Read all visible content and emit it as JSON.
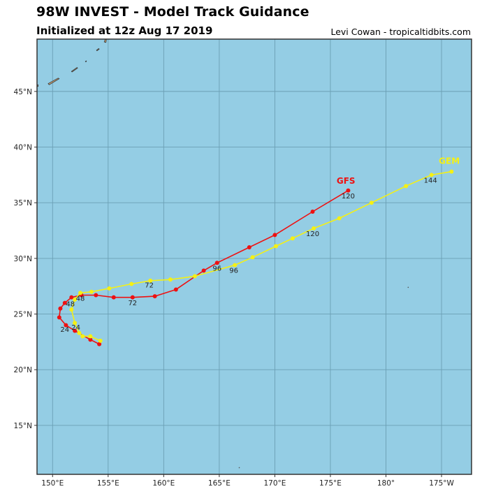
{
  "header": {
    "title": "98W INVEST - Model Track Guidance",
    "subtitle": "Initialized at 12z Aug 17 2019",
    "credit": "Levi Cowan - tropicaltidbits.com"
  },
  "colors": {
    "ocean": "#94cde4",
    "grid": "#6b9fb4",
    "land": "#c8a276",
    "land_edge": "#333333",
    "frame": "#333333",
    "gfs": "#ee1111",
    "gem": "#f5f014"
  },
  "map": {
    "lon_range": [
      148.6,
      187.7
    ],
    "lat_range": [
      10.6,
      49.7
    ],
    "x_ticks": [
      {
        "lon": 150,
        "label": "150°E"
      },
      {
        "lon": 155,
        "label": "155°E"
      },
      {
        "lon": 160,
        "label": "160°E"
      },
      {
        "lon": 165,
        "label": "165°E"
      },
      {
        "lon": 170,
        "label": "170°E"
      },
      {
        "lon": 175,
        "label": "175°E"
      },
      {
        "lon": 180,
        "label": "180°"
      },
      {
        "lon": 185,
        "label": "175°W"
      }
    ],
    "y_ticks": [
      {
        "lat": 15,
        "label": "15°N"
      },
      {
        "lat": 20,
        "label": "20°N"
      },
      {
        "lat": 25,
        "label": "25°N"
      },
      {
        "lat": 30,
        "label": "30°N"
      },
      {
        "lat": 35,
        "label": "35°N"
      },
      {
        "lat": 40,
        "label": "40°N"
      },
      {
        "lat": 45,
        "label": "45°N"
      }
    ]
  },
  "chart_data": {
    "type": "line",
    "title": "98W INVEST - Model Track Guidance",
    "subtitle": "Initialized at 12z Aug 17 2019",
    "xlabel": "Longitude",
    "ylabel": "Latitude",
    "xlim": [
      "148.6°E",
      "172.3°W"
    ],
    "ylim": [
      "10.6°N",
      "49.7°N"
    ],
    "grid": true,
    "series": [
      {
        "name": "GFS",
        "color": "#ee1111",
        "points": [
          [
            154.2,
            22.3
          ],
          [
            153.4,
            22.7
          ],
          [
            152.0,
            23.5
          ],
          [
            151.2,
            24.0
          ],
          [
            150.6,
            24.7
          ],
          [
            150.7,
            25.5
          ],
          [
            151.1,
            26.0
          ],
          [
            151.7,
            26.5
          ],
          [
            152.6,
            26.7
          ],
          [
            153.9,
            26.7
          ],
          [
            155.5,
            26.5
          ],
          [
            157.2,
            26.5
          ],
          [
            159.2,
            26.6
          ],
          [
            161.1,
            27.2
          ],
          [
            163.6,
            28.9
          ],
          [
            164.8,
            29.6
          ],
          [
            167.7,
            31.0
          ],
          [
            170.0,
            32.1
          ],
          [
            173.4,
            34.2
          ],
          [
            176.6,
            36.1
          ]
        ],
        "hour_labels": [
          {
            "text": "24",
            "lon": 151.1,
            "lat": 23.4
          },
          {
            "text": "48",
            "lon": 151.6,
            "lat": 25.7
          },
          {
            "text": "72",
            "lon": 157.2,
            "lat": 25.8
          },
          {
            "text": "96",
            "lon": 164.8,
            "lat": 28.9
          },
          {
            "text": "120",
            "lon": 176.6,
            "lat": 35.4
          }
        ],
        "end_label": {
          "text": "GFS",
          "lon": 176.4,
          "lat": 36.7
        }
      },
      {
        "name": "GEM",
        "color": "#f5f014",
        "points": [
          [
            154.3,
            22.6
          ],
          [
            153.4,
            23.0
          ],
          [
            152.7,
            23.0
          ],
          [
            152.4,
            23.3
          ],
          [
            152.0,
            24.2
          ],
          [
            151.7,
            25.4
          ],
          [
            152.0,
            26.3
          ],
          [
            152.5,
            26.9
          ],
          [
            153.5,
            27.0
          ],
          [
            155.1,
            27.3
          ],
          [
            157.1,
            27.7
          ],
          [
            158.8,
            28.0
          ],
          [
            160.6,
            28.1
          ],
          [
            162.8,
            28.4
          ],
          [
            166.4,
            29.4
          ],
          [
            168.0,
            30.1
          ],
          [
            170.1,
            31.1
          ],
          [
            171.6,
            31.8
          ],
          [
            173.5,
            32.7
          ],
          [
            175.8,
            33.6
          ],
          [
            178.7,
            35.0
          ],
          [
            181.8,
            36.5
          ],
          [
            184.1,
            37.5
          ],
          [
            185.9,
            37.8
          ]
        ],
        "hour_labels": [
          {
            "text": "24",
            "lon": 152.1,
            "lat": 23.6
          },
          {
            "text": "48",
            "lon": 152.5,
            "lat": 26.2
          },
          {
            "text": "72",
            "lon": 158.7,
            "lat": 27.4
          },
          {
            "text": "96",
            "lon": 166.3,
            "lat": 28.7
          },
          {
            "text": "120",
            "lon": 173.4,
            "lat": 32.0
          },
          {
            "text": "144",
            "lon": 184.0,
            "lat": 36.8
          }
        ],
        "end_label": {
          "text": "GEM",
          "lon": 185.7,
          "lat": 38.5
        }
      }
    ]
  },
  "land": [
    {
      "name": "kuril-island-large",
      "points": [
        [
          149.6,
          45.7
        ],
        [
          150.5,
          46.2
        ],
        [
          150.6,
          46.15
        ],
        [
          149.7,
          45.6
        ]
      ]
    },
    {
      "name": "kuril-island-mid",
      "points": [
        [
          151.7,
          46.8
        ],
        [
          152.2,
          47.15
        ],
        [
          152.25,
          47.1
        ],
        [
          151.75,
          46.75
        ]
      ]
    },
    {
      "name": "kuril-island-small-a",
      "points": [
        [
          152.95,
          47.7
        ],
        [
          153.05,
          47.75
        ],
        [
          153.0,
          47.65
        ]
      ]
    },
    {
      "name": "kuril-island-small-b",
      "points": [
        [
          153.95,
          48.7
        ],
        [
          154.15,
          48.85
        ],
        [
          154.2,
          48.8
        ],
        [
          154.0,
          48.65
        ]
      ]
    },
    {
      "name": "kuril-island-top",
      "points": [
        [
          154.65,
          49.45
        ],
        [
          154.75,
          49.7
        ],
        [
          154.85,
          49.7
        ],
        [
          154.8,
          49.4
        ]
      ]
    },
    {
      "name": "kamchatka-edge",
      "points": [
        [
          148.6,
          45.55
        ],
        [
          148.7,
          45.6
        ],
        [
          148.7,
          45.45
        ],
        [
          148.6,
          45.45
        ]
      ]
    }
  ],
  "specks": [
    {
      "lon": 182.0,
      "lat": 27.4
    },
    {
      "lon": 166.8,
      "lat": 11.2
    }
  ]
}
